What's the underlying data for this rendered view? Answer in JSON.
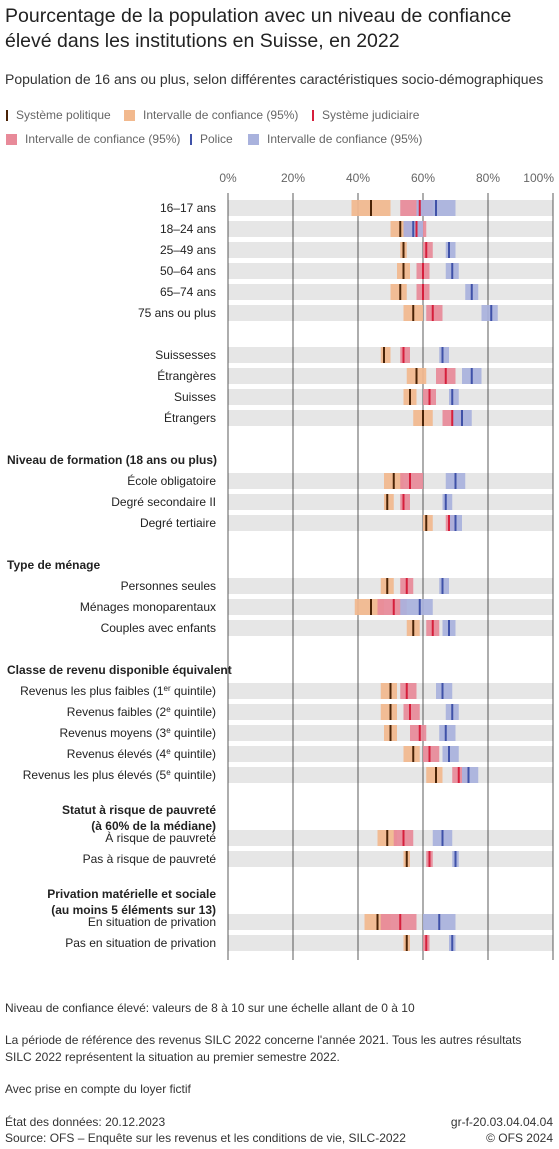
{
  "title": "Pourcentage de la population avec un niveau de confiance élevé dans les institutions en Suisse, en 2022",
  "subtitle": "Population de 16 ans ou plus, selon différentes caractéristiques socio-démographiques",
  "legend": [
    {
      "label": "Système politique",
      "kind": "line",
      "color": "#4a2306"
    },
    {
      "label": "Intervalle de confiance (95%)",
      "kind": "square",
      "color": "#f2b98e"
    },
    {
      "label": "Système judiciaire",
      "kind": "line",
      "color": "#d61f3c"
    },
    {
      "label": "Intervalle de confiance (95%)",
      "kind": "square",
      "color": "#e88a99"
    },
    {
      "label": "Police",
      "kind": "line",
      "color": "#3f51a8"
    },
    {
      "label": "Intervalle de confiance (95%)",
      "kind": "square",
      "color": "#a9b2dd"
    }
  ],
  "chart_data": {
    "type": "bar",
    "xlim": [
      0,
      100
    ],
    "xticks": [
      "0%",
      "20%",
      "40%",
      "60%",
      "80%",
      "100%"
    ],
    "grid": true,
    "series_names": [
      "Système politique",
      "Système judiciaire",
      "Police"
    ],
    "rows": [
      {
        "type": "row",
        "label": "16–17 ans",
        "politique": [
          44,
          38,
          50
        ],
        "judiciaire": [
          59,
          53,
          63
        ],
        "police": [
          64,
          58,
          70
        ]
      },
      {
        "type": "row",
        "label": "18–24 ans",
        "politique": [
          53,
          50,
          56
        ],
        "judiciaire": [
          58,
          54,
          61
        ],
        "police": [
          57,
          54,
          60
        ]
      },
      {
        "type": "row",
        "label": "25–49 ans",
        "politique": [
          54,
          53,
          55
        ],
        "judiciaire": [
          61,
          60,
          63
        ],
        "police": [
          68,
          67,
          70
        ]
      },
      {
        "type": "row",
        "label": "50–64 ans",
        "politique": [
          54,
          52,
          56
        ],
        "judiciaire": [
          60,
          58,
          62
        ],
        "police": [
          69,
          67,
          71
        ]
      },
      {
        "type": "row",
        "label": "65–74 ans",
        "politique": [
          53,
          50,
          55
        ],
        "judiciaire": [
          60,
          58,
          62
        ],
        "police": [
          75,
          73,
          77
        ]
      },
      {
        "type": "row",
        "label": "75 ans ou plus",
        "politique": [
          57,
          54,
          60
        ],
        "judiciaire": [
          63,
          61,
          66
        ],
        "police": [
          81,
          78,
          83
        ]
      },
      {
        "type": "gap"
      },
      {
        "type": "row",
        "label": "Suissesses",
        "politique": [
          48,
          47,
          50
        ],
        "judiciaire": [
          54,
          53,
          56
        ],
        "police": [
          66,
          65,
          68
        ]
      },
      {
        "type": "row",
        "label": "Étrangères",
        "politique": [
          58,
          55,
          61
        ],
        "judiciaire": [
          67,
          64,
          70
        ],
        "police": [
          75,
          72,
          78
        ]
      },
      {
        "type": "row",
        "label": "Suisses",
        "politique": [
          56,
          54,
          58
        ],
        "judiciaire": [
          62,
          60,
          64
        ],
        "police": [
          69,
          68,
          71
        ]
      },
      {
        "type": "row",
        "label": "Étrangers",
        "politique": [
          60,
          57,
          63
        ],
        "judiciaire": [
          69,
          66,
          72
        ],
        "police": [
          72,
          69,
          75
        ]
      },
      {
        "type": "gap"
      },
      {
        "type": "header",
        "label": "Niveau de formation (18 ans ou plus)"
      },
      {
        "type": "row",
        "label": "École obligatoire",
        "politique": [
          51,
          48,
          54
        ],
        "judiciaire": [
          56,
          53,
          60
        ],
        "police": [
          70,
          67,
          73
        ]
      },
      {
        "type": "row",
        "label": "Degré secondaire II",
        "politique": [
          49,
          48,
          51
        ],
        "judiciaire": [
          54,
          53,
          56
        ],
        "police": [
          67,
          66,
          69
        ]
      },
      {
        "type": "row",
        "label": "Degré tertiaire",
        "politique": [
          61,
          60,
          63
        ],
        "judiciaire": [
          68,
          67,
          70
        ],
        "police": [
          70,
          68,
          72
        ]
      },
      {
        "type": "gap"
      },
      {
        "type": "header",
        "label": "Type de ménage"
      },
      {
        "type": "row",
        "label": "Personnes seules",
        "politique": [
          49,
          47,
          51
        ],
        "judiciaire": [
          55,
          53,
          57
        ],
        "police": [
          66,
          65,
          68
        ]
      },
      {
        "type": "row",
        "label": "Ménages monoparentaux",
        "politique": [
          44,
          39,
          48
        ],
        "judiciaire": [
          51,
          46,
          55
        ],
        "police": [
          59,
          53,
          63
        ]
      },
      {
        "type": "row",
        "label": "Couples avec enfants",
        "politique": [
          57,
          55,
          59
        ],
        "judiciaire": [
          63,
          61,
          65
        ],
        "police": [
          68,
          66,
          70
        ]
      },
      {
        "type": "gap"
      },
      {
        "type": "header",
        "label": "Classe de revenu disponible équivalent"
      },
      {
        "type": "row",
        "label": "Revenus les plus faibles (1",
        "sup": "er",
        "suffix": " quintile)",
        "politique": [
          50,
          47,
          52
        ],
        "judiciaire": [
          55,
          53,
          58
        ],
        "police": [
          66,
          64,
          69
        ]
      },
      {
        "type": "row",
        "label": "Revenus faibles (2",
        "sup": "e",
        "suffix": " quintile)",
        "politique": [
          50,
          47,
          52
        ],
        "judiciaire": [
          56,
          54,
          59
        ],
        "police": [
          69,
          67,
          71
        ]
      },
      {
        "type": "row",
        "label": "Revenus moyens (3",
        "sup": "e",
        "suffix": " quintile)",
        "politique": [
          50,
          48,
          52
        ],
        "judiciaire": [
          59,
          56,
          61
        ],
        "police": [
          67,
          65,
          70
        ]
      },
      {
        "type": "row",
        "label": "Revenus élevés (4",
        "sup": "e",
        "suffix": " quintile)",
        "politique": [
          57,
          54,
          59
        ],
        "judiciaire": [
          62,
          60,
          65
        ],
        "police": [
          68,
          66,
          71
        ]
      },
      {
        "type": "row",
        "label": "Revenus les plus élevés (5",
        "sup": "e",
        "suffix": " quintile)",
        "politique": [
          64,
          61,
          66
        ],
        "judiciaire": [
          71,
          69,
          74
        ],
        "police": [
          74,
          72,
          77
        ]
      },
      {
        "type": "gap"
      },
      {
        "type": "header",
        "label": "Statut à risque de pauvreté",
        "label2": "(à 60% de la médiane)"
      },
      {
        "type": "row",
        "label": "À risque de pauvreté",
        "politique": [
          49,
          46,
          52
        ],
        "judiciaire": [
          54,
          51,
          57
        ],
        "police": [
          66,
          63,
          69
        ]
      },
      {
        "type": "row",
        "label": "Pas à risque de pauvreté",
        "politique": [
          55,
          54,
          56
        ],
        "judiciaire": [
          62,
          61,
          63
        ],
        "police": [
          70,
          69,
          71
        ]
      },
      {
        "type": "gap"
      },
      {
        "type": "header",
        "label": "Privation matérielle et sociale",
        "label2": "(au moins 5 éléments sur 13)"
      },
      {
        "type": "row",
        "label": "En situation de privation",
        "politique": [
          46,
          42,
          50
        ],
        "judiciaire": [
          53,
          47,
          58
        ],
        "police": [
          65,
          60,
          70
        ]
      },
      {
        "type": "row",
        "label": "Pas en situation de privation",
        "politique": [
          55,
          54,
          56
        ],
        "judiciaire": [
          61,
          60,
          62
        ],
        "police": [
          69,
          68,
          70
        ]
      }
    ]
  },
  "notes": [
    "Niveau de confiance élevé: valeurs de 8 à 10 sur une échelle allant de 0 à 10",
    "La période de référence des revenus SILC 2022 concerne l'année 2021. Tous les autres résultats SILC 2022 représentent la situation au premier semestre 2022.",
    "Avec prise en compte du loyer fictif"
  ],
  "footer": {
    "date": "État des données: 20.12.2023",
    "source": "Source: OFS – Enquête sur les revenus et les conditions de vie, SILC-2022",
    "code": "gr-f-20.03.04.04.04",
    "copyright": "© OFS 2024"
  }
}
